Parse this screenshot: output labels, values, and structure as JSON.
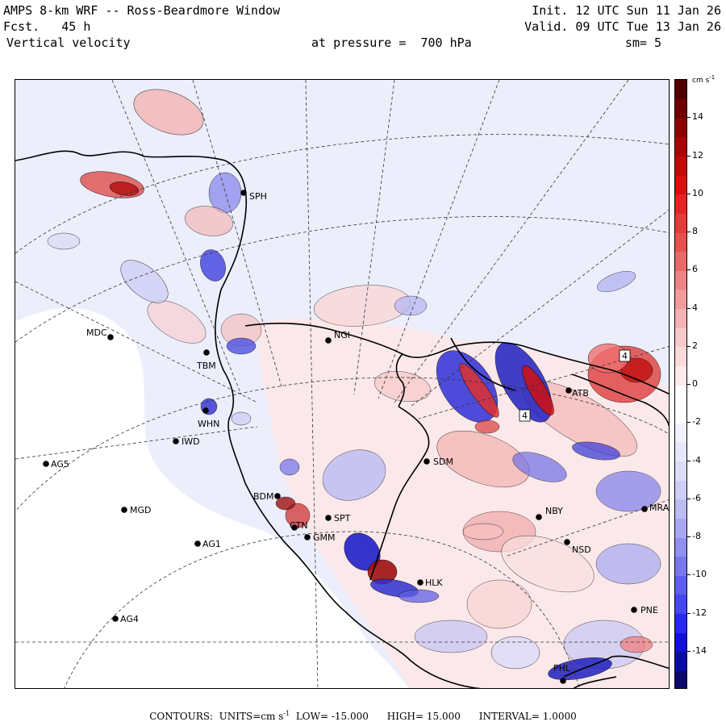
{
  "header": {
    "title": "AMPS 8-km WRF -- Ross-Beardmore Window",
    "forecast_label": "Fcst.",
    "forecast_value": "45 h",
    "field": "Vertical velocity",
    "pressure_text": "at pressure =  700 hPa",
    "init": "Init. 12 UTC Sun 11 Jan 26",
    "valid": "Valid. 09 UTC Tue 13 Jan 26",
    "smoothing": "sm= 5"
  },
  "colorbar": {
    "units": "cm s",
    "units_exp": "-1",
    "ticks": [
      "14",
      "12",
      "10",
      "8",
      "6",
      "4",
      "2",
      "0",
      "-2",
      "-4",
      "-6",
      "-8",
      "-10",
      "-12",
      "-14"
    ],
    "range": [
      -16,
      16
    ],
    "colors": [
      "#0a0a6e",
      "#0b0ba8",
      "#1010d6",
      "#2828f0",
      "#4646f2",
      "#5e5ef0",
      "#7878ee",
      "#9090ee",
      "#a8a8f0",
      "#bcbcf4",
      "#cdcdf6",
      "#dcdcf8",
      "#e8e8fc",
      "#f2f2fe",
      "#ffffff",
      "#ffffff",
      "#fdeaea",
      "#fbdada",
      "#f8caca",
      "#f4b4b4",
      "#f09c9c",
      "#ec8484",
      "#ea6a6a",
      "#e85050",
      "#e63a3a",
      "#e42424",
      "#d81010",
      "#c40808",
      "#aa0404",
      "#900202",
      "#700000",
      "#500000"
    ]
  },
  "stations": [
    {
      "id": "MDC"
    },
    {
      "id": "TBM"
    },
    {
      "id": "NGI"
    },
    {
      "id": "WHN"
    },
    {
      "id": "IWD"
    },
    {
      "id": "AG5"
    },
    {
      "id": "MGD"
    },
    {
      "id": "AG1"
    },
    {
      "id": "AG4"
    },
    {
      "id": "BDM"
    },
    {
      "id": "SDM"
    },
    {
      "id": "NBY"
    },
    {
      "id": "NSD"
    },
    {
      "id": "MRA"
    },
    {
      "id": "HLK"
    },
    {
      "id": "PNE"
    },
    {
      "id": "PHL"
    },
    {
      "id": "SPH"
    },
    {
      "id": "ATB"
    },
    {
      "id": "GMM"
    },
    {
      "id": "SPT"
    },
    {
      "id": "CTN"
    }
  ],
  "contour_labels": [
    "4",
    "4"
  ],
  "footer": {
    "contours_label": "CONTOURS:",
    "units_label": "UNITS=cm s",
    "units_exp": "-1",
    "low": "LOW= -15.000",
    "high": "HIGH= 15.000",
    "interval": "INTERVAL= 1.0000"
  }
}
